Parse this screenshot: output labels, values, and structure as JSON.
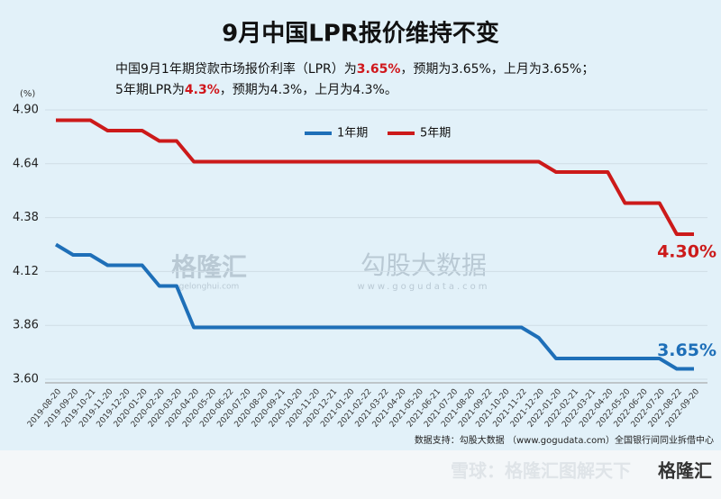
{
  "chart_data": {
    "type": "line",
    "title": "9月中国LPR报价维持不变",
    "subtitle_lines": [
      [
        "中国9月1年期贷款市场报价利率（LPR）为",
        "3.65%",
        "，预期为3.65%，上月为3.65%；"
      ],
      [
        "5年期LPR为",
        "4.3%",
        "，预期为4.3%，上月为4.3%。"
      ]
    ],
    "y_unit": "(%)",
    "categories": [
      "2019-08-20",
      "2019-09-20",
      "2019-10-21",
      "2019-11-20",
      "2019-12-20",
      "2020-01-20",
      "2020-02-20",
      "2020-03-20",
      "2020-04-20",
      "2020-05-20",
      "2020-06-22",
      "2020-07-20",
      "2020-08-20",
      "2020-09-21",
      "2020-10-20",
      "2020-11-20",
      "2020-12-21",
      "2021-01-20",
      "2021-02-22",
      "2021-03-22",
      "2021-04-20",
      "2021-05-20",
      "2021-06-21",
      "2021-07-20",
      "2021-08-20",
      "2021-09-22",
      "2021-10-20",
      "2021-11-22",
      "2021-12-20",
      "2022-01-20",
      "2022-02-21",
      "2022-03-21",
      "2022-04-20",
      "2022-05-20",
      "2022-06-20",
      "2022-07-20",
      "2022-08-22",
      "2022-09-20"
    ],
    "series": [
      {
        "name": "1年期",
        "color": "#1e6fb8",
        "values": [
          4.25,
          4.2,
          4.2,
          4.15,
          4.15,
          4.15,
          4.05,
          4.05,
          3.85,
          3.85,
          3.85,
          3.85,
          3.85,
          3.85,
          3.85,
          3.85,
          3.85,
          3.85,
          3.85,
          3.85,
          3.85,
          3.85,
          3.85,
          3.85,
          3.85,
          3.85,
          3.85,
          3.85,
          3.8,
          3.7,
          3.7,
          3.7,
          3.7,
          3.7,
          3.7,
          3.7,
          3.65,
          3.65
        ],
        "value_labels": [
          null,
          null,
          null,
          null,
          null,
          null,
          null,
          null,
          null,
          null,
          null,
          null,
          null,
          null,
          null,
          null,
          null,
          null,
          null,
          null,
          null,
          null,
          null,
          null,
          null,
          null,
          null,
          null,
          null,
          null,
          null,
          null,
          null,
          null,
          null,
          null,
          null,
          "3.65%"
        ]
      },
      {
        "name": "5年期",
        "color": "#cc1a1a",
        "values": [
          4.85,
          4.85,
          4.85,
          4.8,
          4.8,
          4.8,
          4.75,
          4.75,
          4.65,
          4.65,
          4.65,
          4.65,
          4.65,
          4.65,
          4.65,
          4.65,
          4.65,
          4.65,
          4.65,
          4.65,
          4.65,
          4.65,
          4.65,
          4.65,
          4.65,
          4.65,
          4.65,
          4.65,
          4.65,
          4.6,
          4.6,
          4.6,
          4.6,
          4.45,
          4.45,
          4.45,
          4.3,
          4.3
        ],
        "value_labels": [
          null,
          null,
          null,
          null,
          null,
          null,
          null,
          null,
          null,
          null,
          null,
          null,
          null,
          null,
          null,
          null,
          null,
          null,
          null,
          null,
          null,
          null,
          null,
          null,
          null,
          null,
          null,
          null,
          null,
          null,
          null,
          null,
          null,
          null,
          null,
          null,
          null,
          "4.30%"
        ]
      }
    ],
    "ylim": [
      3.6,
      4.9
    ],
    "yticks": [
      {
        "value": 3.6,
        "label": "3.60"
      },
      3.86,
      4.12,
      4.38,
      4.64,
      {
        "value": 4.9,
        "label": "4.90"
      }
    ],
    "grid": true,
    "legend": "top",
    "source": "数据支持：勾股大数据 （www.gogudata.com）全国银行间同业拆借中心",
    "watermarks": [
      "格隆汇",
      "gelonghui.com",
      "勾股大数据",
      "www.gogudata.com"
    ],
    "footer": {
      "text": "雪球：格隆汇图解天下",
      "logo": "格隆汇"
    }
  }
}
